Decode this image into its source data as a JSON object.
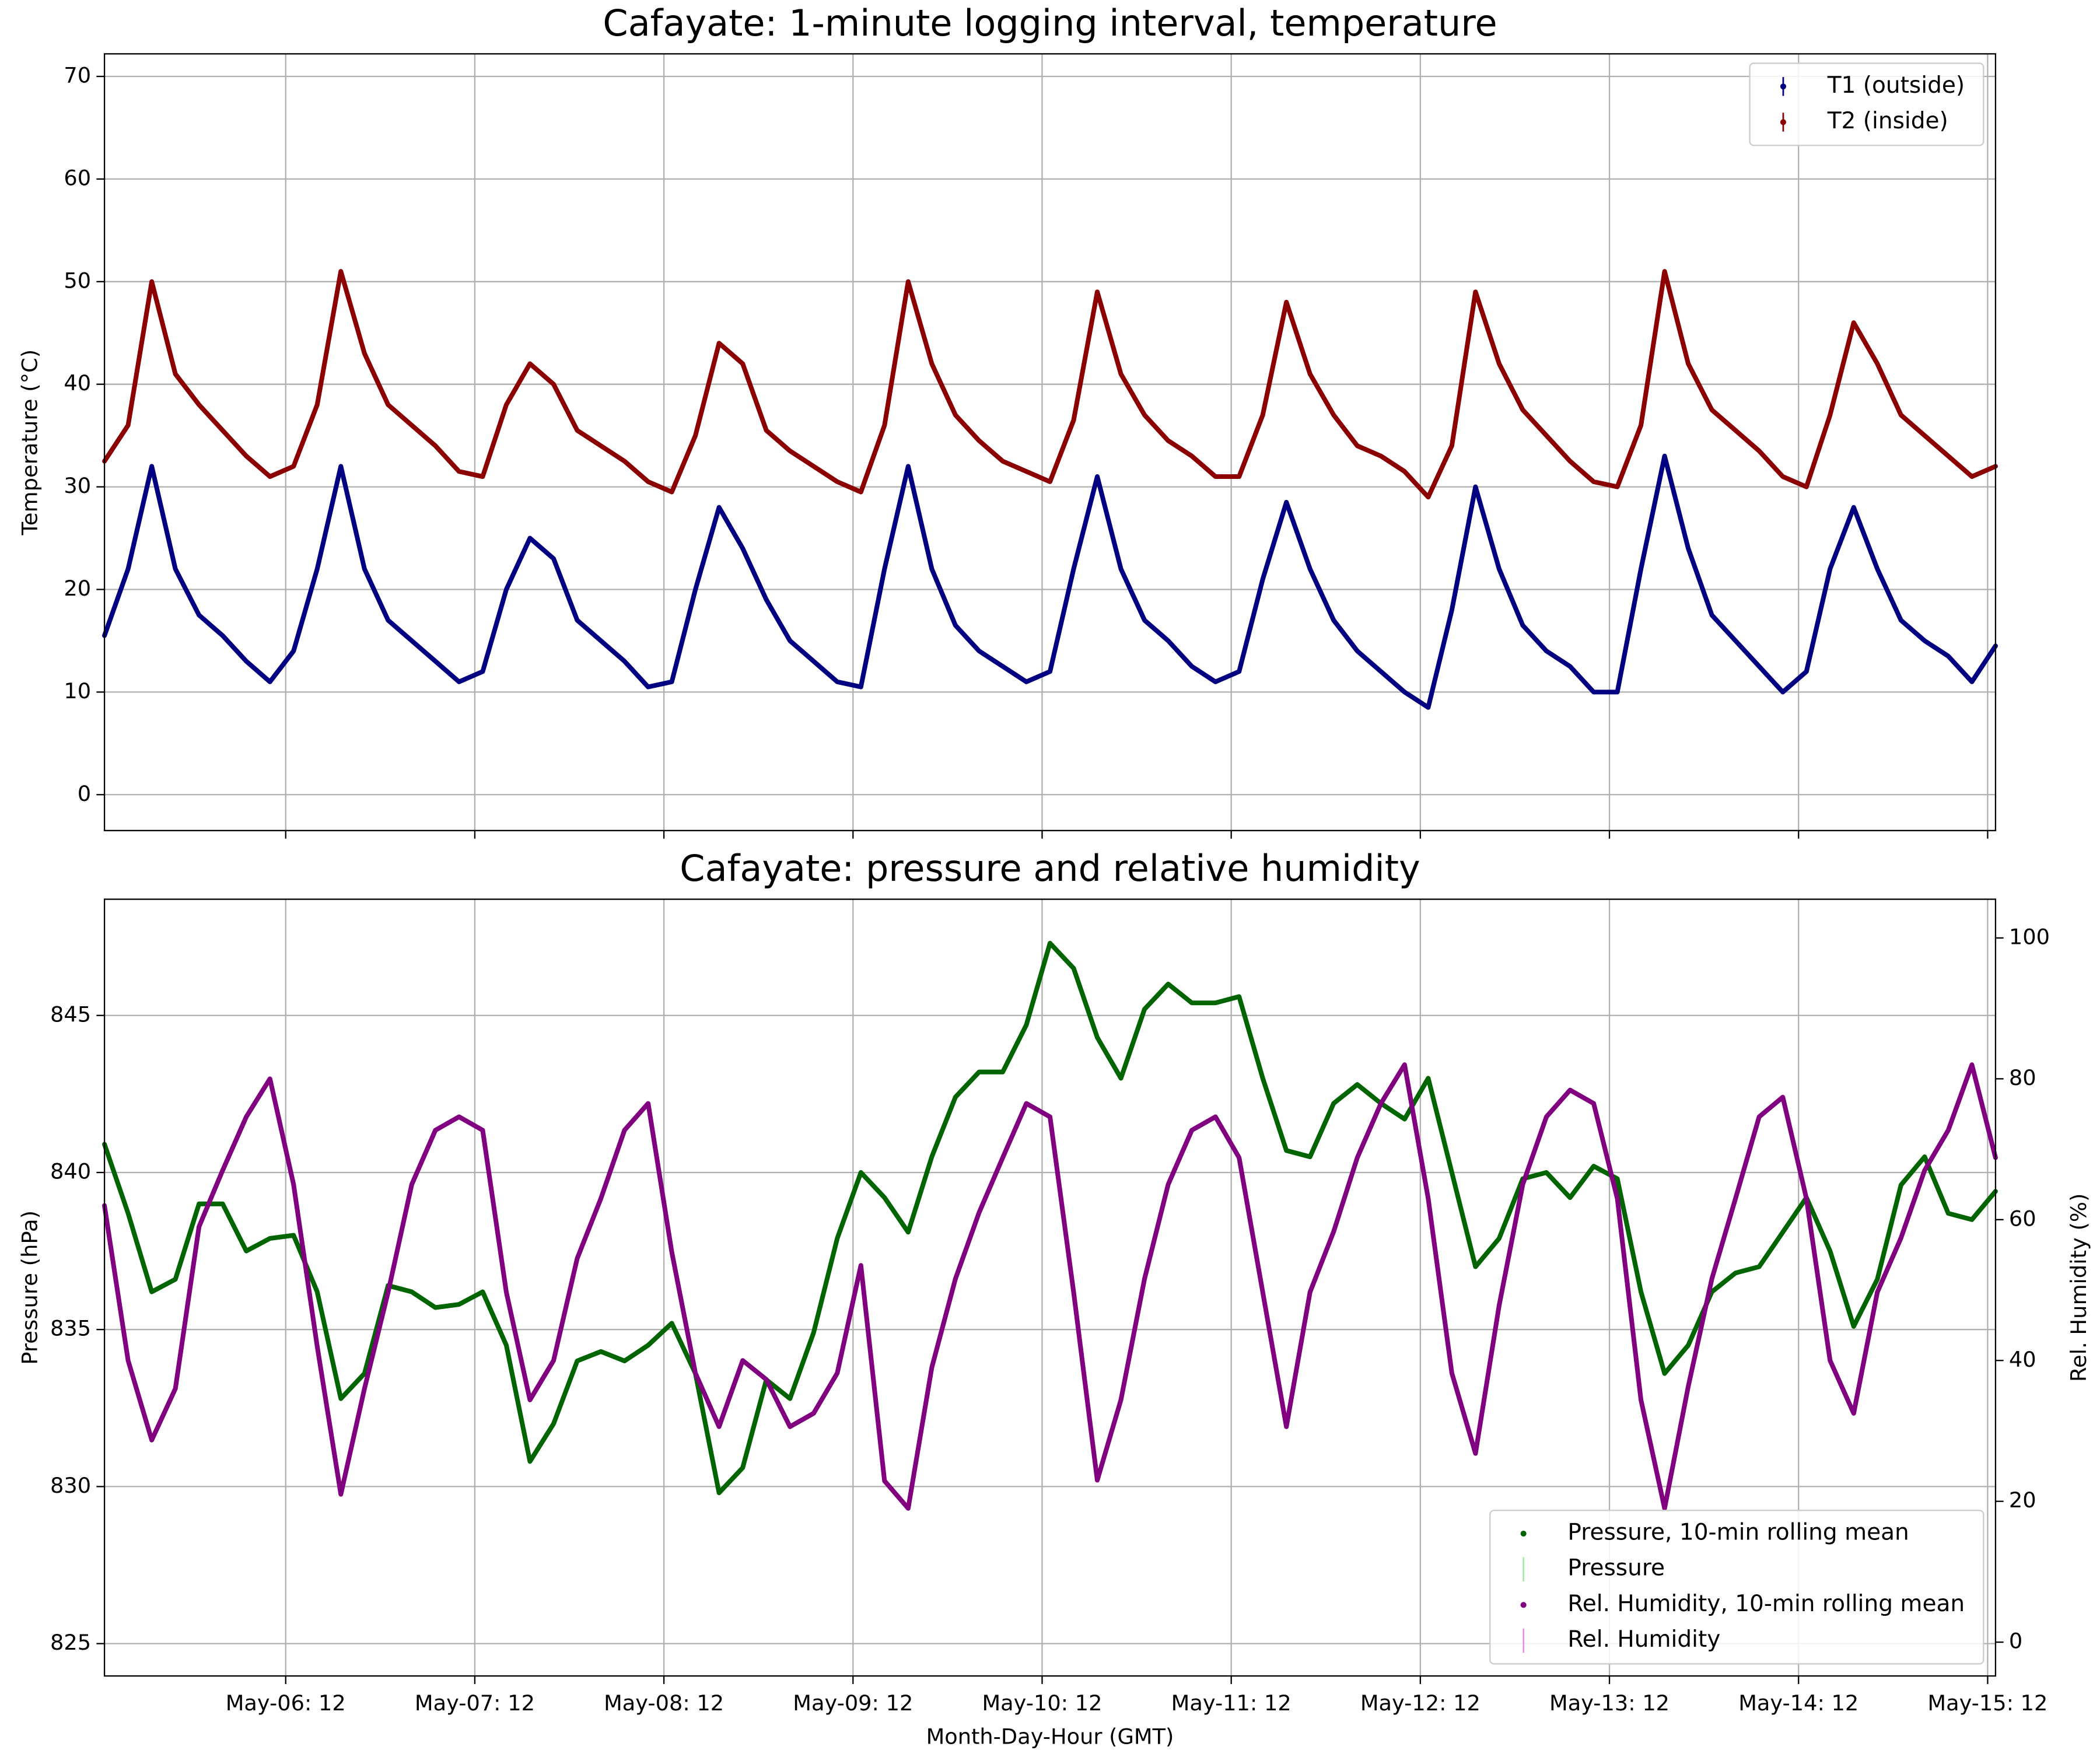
{
  "chart_data": [
    {
      "type": "line",
      "title": "Cafayate: 1-minute logging interval, temperature",
      "ylabel": "Temperature (°C)",
      "xlim": [
        "May-05: 13",
        "May-15: 13"
      ],
      "ylim": [
        -3.5,
        72.2
      ],
      "yticks": [
        0,
        10,
        20,
        30,
        40,
        50,
        60,
        70
      ],
      "xticks": [
        "May-06: 12",
        "May-07: 12",
        "May-08: 12",
        "May-09: 12",
        "May-10: 12",
        "May-11: 12",
        "May-12: 12",
        "May-13: 12",
        "May-14: 12",
        "May-15: 12"
      ],
      "show_xtick_labels": false,
      "grid": true,
      "legend": "upper right",
      "x": [
        "May-05: 13",
        "May-05: 16",
        "May-05: 19",
        "May-05: 22",
        "May-06: 01",
        "May-06: 04",
        "May-06: 07",
        "May-06: 10",
        "May-06: 13",
        "May-06: 16",
        "May-06: 19",
        "May-06: 22",
        "May-07: 01",
        "May-07: 04",
        "May-07: 07",
        "May-07: 10",
        "May-07: 13",
        "May-07: 16",
        "May-07: 19",
        "May-07: 22",
        "May-08: 01",
        "May-08: 04",
        "May-08: 07",
        "May-08: 10",
        "May-08: 13",
        "May-08: 16",
        "May-08: 19",
        "May-08: 22",
        "May-09: 01",
        "May-09: 04",
        "May-09: 07",
        "May-09: 10",
        "May-09: 13",
        "May-09: 16",
        "May-09: 19",
        "May-09: 22",
        "May-10: 01",
        "May-10: 04",
        "May-10: 07",
        "May-10: 10",
        "May-10: 13",
        "May-10: 16",
        "May-10: 19",
        "May-10: 22",
        "May-11: 01",
        "May-11: 04",
        "May-11: 07",
        "May-11: 10",
        "May-11: 13",
        "May-11: 16",
        "May-11: 19",
        "May-11: 22",
        "May-12: 01",
        "May-12: 04",
        "May-12: 07",
        "May-12: 10",
        "May-12: 13",
        "May-12: 16",
        "May-12: 19",
        "May-12: 22",
        "May-13: 01",
        "May-13: 04",
        "May-13: 07",
        "May-13: 10",
        "May-13: 13",
        "May-13: 16",
        "May-13: 19",
        "May-13: 22",
        "May-14: 01",
        "May-14: 04",
        "May-14: 07",
        "May-14: 10",
        "May-14: 13",
        "May-14: 16",
        "May-14: 19",
        "May-14: 22",
        "May-15: 01",
        "May-15: 04",
        "May-15: 07",
        "May-15: 10",
        "May-15: 13"
      ],
      "series": [
        {
          "name": "T1 (outside)",
          "color": "#000080",
          "values": [
            15.5,
            22,
            32,
            22,
            17.5,
            15.5,
            13,
            11,
            14,
            22,
            32,
            22,
            17,
            15,
            13,
            11,
            12,
            20,
            25,
            23,
            17,
            15,
            13,
            10.5,
            11,
            20,
            28,
            24,
            19,
            15,
            13,
            11,
            10.5,
            22,
            32,
            22,
            16.5,
            14,
            12.5,
            11,
            12,
            22,
            31,
            22,
            17,
            15,
            12.5,
            11,
            12,
            21,
            28.5,
            22,
            17,
            14,
            12,
            10,
            8.5,
            18,
            30,
            22,
            16.5,
            14,
            12.5,
            10,
            10,
            22,
            33,
            24,
            17.5,
            15,
            12.5,
            10,
            12,
            22,
            28,
            22,
            17,
            15,
            13.5,
            11,
            14.5
          ]
        },
        {
          "name": "T2 (inside)",
          "color": "#8b0000",
          "values": [
            32.5,
            36,
            50,
            41,
            38,
            35.5,
            33,
            31,
            32,
            38,
            51,
            43,
            38,
            36,
            34,
            31.5,
            31,
            38,
            42,
            40,
            35.5,
            34,
            32.5,
            30.5,
            29.5,
            35,
            44,
            42,
            35.5,
            33.5,
            32,
            30.5,
            29.5,
            36,
            50,
            42,
            37,
            34.5,
            32.5,
            31.5,
            30.5,
            36.5,
            49,
            41,
            37,
            34.5,
            33,
            31,
            31,
            37,
            48,
            41,
            37,
            34,
            33,
            31.5,
            29,
            34,
            49,
            42,
            37.5,
            35,
            32.5,
            30.5,
            30,
            36,
            51,
            42,
            37.5,
            35.5,
            33.5,
            31,
            30,
            37,
            46,
            42,
            37,
            35,
            33,
            31,
            32
          ]
        }
      ]
    },
    {
      "type": "line",
      "title": "Cafayate: pressure and relative humidity",
      "xlabel": "Month-Day-Hour (GMT)",
      "ylabel": "Pressure (hPa)",
      "y2label": "Rel. Humidity (%)",
      "xlim": [
        "May-05: 13",
        "May-15: 13"
      ],
      "ylim": [
        823.97,
        848.7
      ],
      "yticks": [
        825,
        830,
        835,
        840,
        845
      ],
      "y2lim": [
        -4.8,
        105.5
      ],
      "y2ticks": [
        0,
        20,
        40,
        60,
        80,
        100
      ],
      "xticks": [
        "May-06: 12",
        "May-07: 12",
        "May-08: 12",
        "May-09: 12",
        "May-10: 12",
        "May-11: 12",
        "May-12: 12",
        "May-13: 12",
        "May-14: 12",
        "May-15: 12"
      ],
      "show_xtick_labels": true,
      "grid": true,
      "legend": "lower right",
      "x": [
        "May-05: 13",
        "May-05: 16",
        "May-05: 19",
        "May-05: 22",
        "May-06: 01",
        "May-06: 04",
        "May-06: 07",
        "May-06: 10",
        "May-06: 13",
        "May-06: 16",
        "May-06: 19",
        "May-06: 22",
        "May-07: 01",
        "May-07: 04",
        "May-07: 07",
        "May-07: 10",
        "May-07: 13",
        "May-07: 16",
        "May-07: 19",
        "May-07: 22",
        "May-08: 01",
        "May-08: 04",
        "May-08: 07",
        "May-08: 10",
        "May-08: 13",
        "May-08: 16",
        "May-08: 19",
        "May-08: 22",
        "May-09: 01",
        "May-09: 04",
        "May-09: 07",
        "May-09: 10",
        "May-09: 13",
        "May-09: 16",
        "May-09: 19",
        "May-09: 22",
        "May-10: 01",
        "May-10: 04",
        "May-10: 07",
        "May-10: 10",
        "May-10: 13",
        "May-10: 16",
        "May-10: 19",
        "May-10: 22",
        "May-11: 01",
        "May-11: 04",
        "May-11: 07",
        "May-11: 10",
        "May-11: 13",
        "May-11: 16",
        "May-11: 19",
        "May-11: 22",
        "May-12: 01",
        "May-12: 04",
        "May-12: 07",
        "May-12: 10",
        "May-12: 13",
        "May-12: 16",
        "May-12: 19",
        "May-12: 22",
        "May-13: 01",
        "May-13: 04",
        "May-13: 07",
        "May-13: 10",
        "May-13: 13",
        "May-13: 16",
        "May-13: 19",
        "May-13: 22",
        "May-14: 01",
        "May-14: 04",
        "May-14: 07",
        "May-14: 10",
        "May-14: 13",
        "May-14: 16",
        "May-14: 19",
        "May-14: 22",
        "May-15: 01",
        "May-15: 04",
        "May-15: 07",
        "May-15: 10",
        "May-15: 13"
      ],
      "series": [
        {
          "name": "Pressure, 10-min rolling mean",
          "color": "#006400",
          "values": [
            840.9,
            838.7,
            836.2,
            836.6,
            839,
            839,
            837.5,
            837.9,
            838,
            836.2,
            832.8,
            833.6,
            836.4,
            836.2,
            835.7,
            835.8,
            836.2,
            834.5,
            830.8,
            832,
            834,
            834.3,
            834,
            834.5,
            835.2,
            833.6,
            829.8,
            830.6,
            833.4,
            832.8,
            834.9,
            837.9,
            840,
            839.2,
            838.1,
            840.5,
            842.4,
            843.2,
            843.2,
            844.7,
            847.3,
            846.5,
            844.3,
            843,
            845.2,
            846,
            845.4,
            845.4,
            845.6,
            843,
            840.7,
            840.5,
            842.2,
            842.8,
            842.2,
            841.7,
            843,
            840,
            837,
            837.9,
            839.8,
            840,
            839.2,
            840.2,
            839.8,
            836.2,
            833.6,
            834.5,
            836.2,
            836.8,
            837,
            838.1,
            839.2,
            837.5,
            835.1,
            836.6,
            839.6,
            840.5,
            838.7,
            838.5,
            839.4
          ]
        },
        {
          "name": "Rel. Humidity, 10-min rolling mean",
          "color": "#800080",
          "axis": "y2",
          "values": [
            62,
            40,
            28.7,
            36,
            59,
            67,
            74.6,
            80,
            65,
            42,
            21,
            36,
            49.7,
            65,
            72.7,
            74.6,
            72.7,
            49.7,
            34.4,
            40,
            54.5,
            63,
            72.7,
            76.5,
            55.4,
            38.2,
            30.6,
            40,
            37.3,
            30.6,
            32.5,
            38.2,
            53.5,
            22.9,
            19,
            39,
            51.6,
            61,
            68.8,
            76.5,
            74.6,
            49.7,
            23,
            34.4,
            51.6,
            65,
            72.7,
            74.6,
            68.8,
            49.7,
            30.6,
            49.7,
            58.3,
            68.8,
            76.5,
            82,
            63,
            38.2,
            26.8,
            47.8,
            65,
            74.6,
            78.4,
            76.5,
            63,
            34.4,
            19,
            36.3,
            51.6,
            63,
            74.6,
            77.4,
            63,
            40,
            32.5,
            49.7,
            57.4,
            67,
            72.7,
            82,
            68.8
          ]
        }
      ],
      "raw_series": [
        {
          "name": "Pressure",
          "color": "#90ee90"
        },
        {
          "name": "Rel. Humidity",
          "color": "#ee82ee"
        }
      ]
    }
  ]
}
